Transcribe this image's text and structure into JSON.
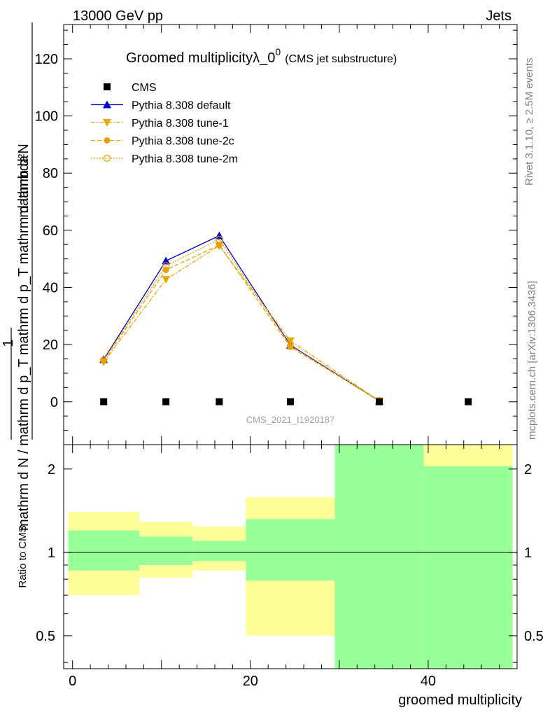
{
  "header": {
    "left": "13000 GeV pp",
    "right": "Jets"
  },
  "side_labels": {
    "rivet": "Rivet 3.1.10, ≥ 2.5M events",
    "mcplots": "mcplots.cern.ch [arXiv:1306.3436]"
  },
  "watermark": "CMS_2021_I1920187",
  "chart_data": [
    {
      "type": "line",
      "title": "Groomed multiplicityλ_0",
      "title_superscript": "0",
      "subtitle": "(CMS jet substructure)",
      "ylabel": {
        "numerator": "mathrm d²N",
        "one": "1",
        "denominator": "mathrm d N / mathrm d p_T mathrm d p_T mathrm d lambda"
      },
      "ylim": [
        -15,
        132
      ],
      "y_ticks": [
        0,
        20,
        40,
        60,
        80,
        100,
        120
      ],
      "xlim": [
        -1,
        50
      ],
      "legend_position": "top-left",
      "series": [
        {
          "name": "CMS",
          "color": "#000000",
          "marker": "square",
          "line": "none",
          "x": [
            3.5,
            10.5,
            16.5,
            24.5,
            34.5,
            44.5
          ],
          "y": [
            0,
            0,
            0,
            0,
            0,
            0
          ]
        },
        {
          "name": "Pythia 8.308 default",
          "color": "#0000cc",
          "marker": "triangle-up",
          "line": "solid",
          "x": [
            3.5,
            10.5,
            16.5,
            24.5,
            34.5
          ],
          "y": [
            14.8,
            49.3,
            58.1,
            19.8,
            0.3
          ]
        },
        {
          "name": "Pythia 8.308 tune-1",
          "color": "#e8a800",
          "marker": "triangle-down",
          "line": "dashdot",
          "x": [
            3.5,
            10.5,
            16.5,
            24.5,
            34.5
          ],
          "y": [
            13.9,
            42.8,
            54.6,
            21.3,
            0.3
          ]
        },
        {
          "name": "Pythia 8.308 tune-2c",
          "color": "#e8a000",
          "marker": "circle-filled",
          "line": "dashed",
          "x": [
            3.5,
            10.5,
            16.5,
            24.5,
            34.5
          ],
          "y": [
            14.3,
            46.1,
            54.8,
            19.2,
            0.3
          ]
        },
        {
          "name": "Pythia 8.308 tune-2m",
          "color": "#e8a000",
          "marker": "circle-open",
          "line": "dotted",
          "x": [
            3.5,
            10.5,
            16.5,
            24.5,
            34.5
          ],
          "y": [
            14.6,
            47.6,
            56.8,
            19.6,
            0.3
          ]
        }
      ]
    },
    {
      "type": "area",
      "ylabel": "Ratio to CMS",
      "xlabel": "groomed multiplicity",
      "log_y": true,
      "ylim": [
        0.38,
        2.45
      ],
      "y_ticks": [
        0.5,
        1,
        2
      ],
      "reference_line": 1,
      "xlim": [
        -1,
        50
      ],
      "x_ticks": [
        0,
        20,
        40
      ],
      "bands": [
        {
          "x0": -0.5,
          "x1": 7.5,
          "yellow": [
            0.7,
            1.4
          ],
          "green": [
            0.86,
            1.2
          ]
        },
        {
          "x0": 7.5,
          "x1": 13.5,
          "yellow": [
            0.81,
            1.29
          ],
          "green": [
            0.9,
            1.14
          ]
        },
        {
          "x0": 13.5,
          "x1": 19.5,
          "yellow": [
            0.86,
            1.24
          ],
          "green": [
            0.93,
            1.1
          ]
        },
        {
          "x0": 19.5,
          "x1": 29.5,
          "yellow": [
            0.5,
            1.58
          ],
          "green": [
            0.79,
            1.32
          ]
        },
        {
          "x0": 29.5,
          "x1": 39.5,
          "yellow": [
            0.3,
            3.0
          ],
          "green": [
            0.3,
            3.0
          ]
        },
        {
          "x0": 39.5,
          "x1": 49.5,
          "yellow": [
            0.3,
            3.0
          ],
          "green": [
            0.3,
            2.05
          ]
        }
      ],
      "colors": {
        "green": "#99ff99",
        "yellow": "#ffff99"
      }
    }
  ]
}
